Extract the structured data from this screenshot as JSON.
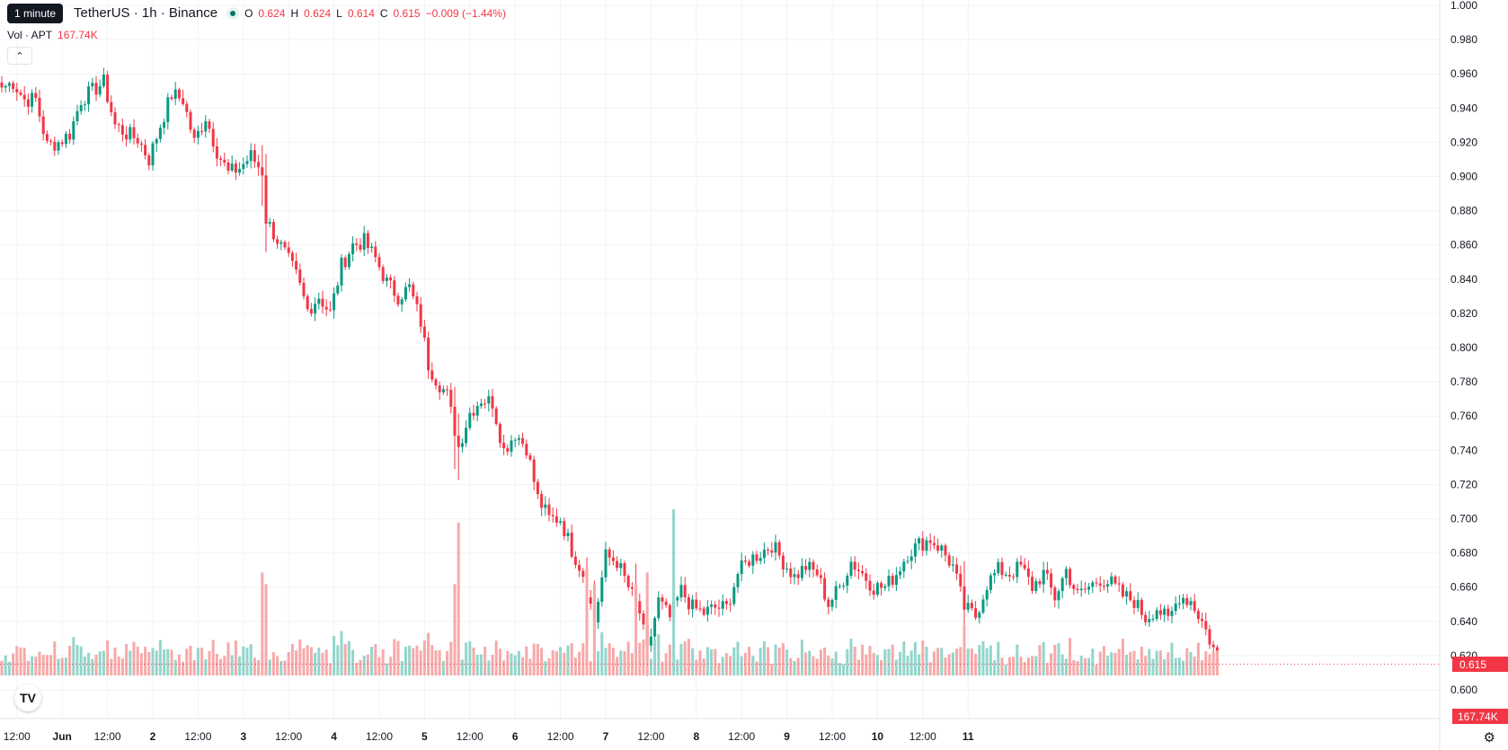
{
  "header": {
    "tooltip": "1 minute",
    "symbol_text": "TetherUS · 1h · Binance",
    "ohlc": [
      {
        "label": "O",
        "value": "0.624"
      },
      {
        "label": "H",
        "value": "0.624"
      },
      {
        "label": "L",
        "value": "0.614"
      },
      {
        "label": "C",
        "value": "0.615"
      }
    ],
    "change": "−0.009 (−1.44%)"
  },
  "volume_legend": {
    "label": "Vol · APT",
    "value": "167.74K"
  },
  "last_price_label": "0.615",
  "last_volume_label": "167.74K",
  "colors": {
    "up": "#089981",
    "down": "#f23645",
    "up_vol": "#93d5cb",
    "down_vol": "#f7a9a9",
    "grid": "#f0f3fa"
  },
  "icons": {
    "collapse": "chevron-up-icon",
    "logo": "tradingview-logo-icon",
    "settings": "gear-icon"
  },
  "chart_data": {
    "type": "candlestick",
    "y_ticks": [
      "1.000",
      "0.980",
      "0.960",
      "0.940",
      "0.920",
      "0.900",
      "0.880",
      "0.860",
      "0.840",
      "0.820",
      "0.800",
      "0.780",
      "0.760",
      "0.740",
      "0.720",
      "0.700",
      "0.680",
      "0.660",
      "0.640",
      "0.620",
      "0.600"
    ],
    "ylim": [
      0.6,
      1.0
    ],
    "x_ticks": [
      "12:00",
      "Jun",
      "12:00",
      "2",
      "12:00",
      "3",
      "12:00",
      "4",
      "12:00",
      "5",
      "12:00",
      "6",
      "12:00",
      "7",
      "12:00",
      "8",
      "12:00",
      "9",
      "12:00",
      "10",
      "12:00",
      "11"
    ],
    "x_tick_hours": [
      12,
      24,
      36,
      48,
      60,
      72,
      84,
      96,
      108,
      120,
      132,
      144,
      156,
      168,
      180,
      192,
      204,
      216,
      228,
      240,
      252,
      264
    ],
    "start_hour": 8,
    "last_close": 0.615,
    "anchor_closes": [
      [
        0,
        0.952
      ],
      [
        3,
        0.955
      ],
      [
        6,
        0.945
      ],
      [
        9,
        0.945
      ],
      [
        12,
        0.918
      ],
      [
        15,
        0.92
      ],
      [
        18,
        0.925
      ],
      [
        21,
        0.945
      ],
      [
        24,
        0.95
      ],
      [
        27,
        0.955
      ],
      [
        30,
        0.93
      ],
      [
        33,
        0.925
      ],
      [
        36,
        0.922
      ],
      [
        39,
        0.91
      ],
      [
        42,
        0.93
      ],
      [
        45,
        0.948
      ],
      [
        48,
        0.945
      ],
      [
        51,
        0.92
      ],
      [
        54,
        0.935
      ],
      [
        57,
        0.915
      ],
      [
        60,
        0.902
      ],
      [
        63,
        0.905
      ],
      [
        66,
        0.912
      ],
      [
        69,
        0.903
      ],
      [
        70,
        0.875
      ],
      [
        72,
        0.867
      ],
      [
        75,
        0.855
      ],
      [
        78,
        0.842
      ],
      [
        81,
        0.822
      ],
      [
        84,
        0.83
      ],
      [
        87,
        0.82
      ],
      [
        90,
        0.848
      ],
      [
        93,
        0.86
      ],
      [
        96,
        0.862
      ],
      [
        99,
        0.852
      ],
      [
        102,
        0.838
      ],
      [
        105,
        0.83
      ],
      [
        108,
        0.835
      ],
      [
        111,
        0.815
      ],
      [
        113,
        0.79
      ],
      [
        115,
        0.782
      ],
      [
        118,
        0.772
      ],
      [
        121,
        0.742
      ],
      [
        124,
        0.762
      ],
      [
        127,
        0.77
      ],
      [
        130,
        0.768
      ],
      [
        133,
        0.74
      ],
      [
        136,
        0.75
      ],
      [
        139,
        0.742
      ],
      [
        142,
        0.712
      ],
      [
        145,
        0.7
      ],
      [
        148,
        0.7
      ],
      [
        151,
        0.682
      ],
      [
        154,
        0.668
      ],
      [
        157,
        0.64
      ],
      [
        160,
        0.678
      ],
      [
        163,
        0.675
      ],
      [
        166,
        0.66
      ],
      [
        169,
        0.645
      ],
      [
        171,
        0.622
      ],
      [
        174,
        0.652
      ],
      [
        177,
        0.642
      ],
      [
        180,
        0.658
      ],
      [
        183,
        0.648
      ],
      [
        186,
        0.645
      ],
      [
        189,
        0.648
      ],
      [
        192,
        0.648
      ],
      [
        195,
        0.668
      ],
      [
        198,
        0.676
      ],
      [
        201,
        0.68
      ],
      [
        204,
        0.685
      ],
      [
        207,
        0.675
      ],
      [
        210,
        0.666
      ],
      [
        213,
        0.672
      ],
      [
        216,
        0.668
      ],
      [
        219,
        0.65
      ],
      [
        222,
        0.66
      ],
      [
        225,
        0.675
      ],
      [
        228,
        0.668
      ],
      [
        231,
        0.66
      ],
      [
        234,
        0.66
      ],
      [
        237,
        0.668
      ],
      [
        240,
        0.68
      ],
      [
        243,
        0.685
      ],
      [
        246,
        0.688
      ],
      [
        249,
        0.682
      ],
      [
        252,
        0.672
      ],
      [
        255,
        0.648
      ],
      [
        258,
        0.643
      ],
      [
        261,
        0.662
      ],
      [
        264,
        0.67
      ],
      [
        267,
        0.668
      ],
      [
        270,
        0.672
      ],
      [
        273,
        0.66
      ],
      [
        276,
        0.668
      ],
      [
        279,
        0.654
      ],
      [
        282,
        0.67
      ],
      [
        285,
        0.655
      ],
      [
        288,
        0.66
      ],
      [
        291,
        0.665
      ],
      [
        294,
        0.662
      ],
      [
        297,
        0.655
      ],
      [
        300,
        0.652
      ],
      [
        303,
        0.642
      ],
      [
        306,
        0.648
      ],
      [
        309,
        0.64
      ],
      [
        312,
        0.655
      ],
      [
        315,
        0.652
      ],
      [
        318,
        0.64
      ],
      [
        321,
        0.624
      ],
      [
        322,
        0.615
      ]
    ],
    "volume_spikes": [
      [
        69,
        0.62
      ],
      [
        70,
        0.55
      ],
      [
        120,
        0.55
      ],
      [
        121,
        0.92
      ],
      [
        155,
        0.65
      ],
      [
        157,
        0.55
      ],
      [
        168,
        0.55
      ],
      [
        171,
        0.62
      ],
      [
        178,
        1.0
      ],
      [
        255,
        0.3
      ]
    ]
  }
}
